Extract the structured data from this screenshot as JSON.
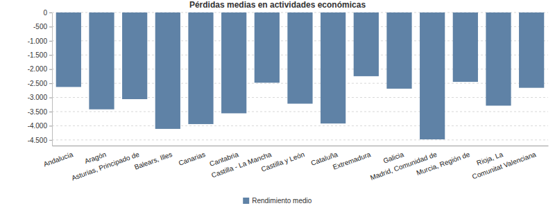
{
  "chart_data": {
    "type": "bar",
    "title": "Pérdidas medias en actividades económicas",
    "categories": [
      "Andalucía",
      "Aragón",
      "Asturias, Principado de",
      "Balears, Illes",
      "Canarias",
      "Cantabria",
      "Castilla - La Mancha",
      "Castilla y León",
      "Cataluña",
      "Extremadura",
      "Galicia",
      "Madrid, Comunidad de",
      "Murcia, Región de",
      "Rioja, La",
      "Comunitat Valenciana"
    ],
    "series": [
      {
        "name": "Rendimiento medio",
        "color": "#5f82a6",
        "values": [
          -2630,
          -3420,
          -3060,
          -4110,
          -3940,
          -3560,
          -2480,
          -3220,
          -3920,
          -2250,
          -2690,
          -4480,
          -2450,
          -3290,
          -2660
        ]
      }
    ],
    "ylim": [
      -4700,
      0
    ],
    "yticks": [
      {
        "value": -4500,
        "label": "-4.500"
      },
      {
        "value": -4000,
        "label": "-4.000"
      },
      {
        "value": -3500,
        "label": "-3.500"
      },
      {
        "value": -3000,
        "label": "-3.000"
      },
      {
        "value": -2500,
        "label": "-2.500"
      },
      {
        "value": -2000,
        "label": "-2.000"
      },
      {
        "value": -1500,
        "label": "-1.500"
      },
      {
        "value": -1000,
        "label": "-1.000"
      },
      -500,
      0
    ],
    "grid": true,
    "legend": "bottom"
  }
}
